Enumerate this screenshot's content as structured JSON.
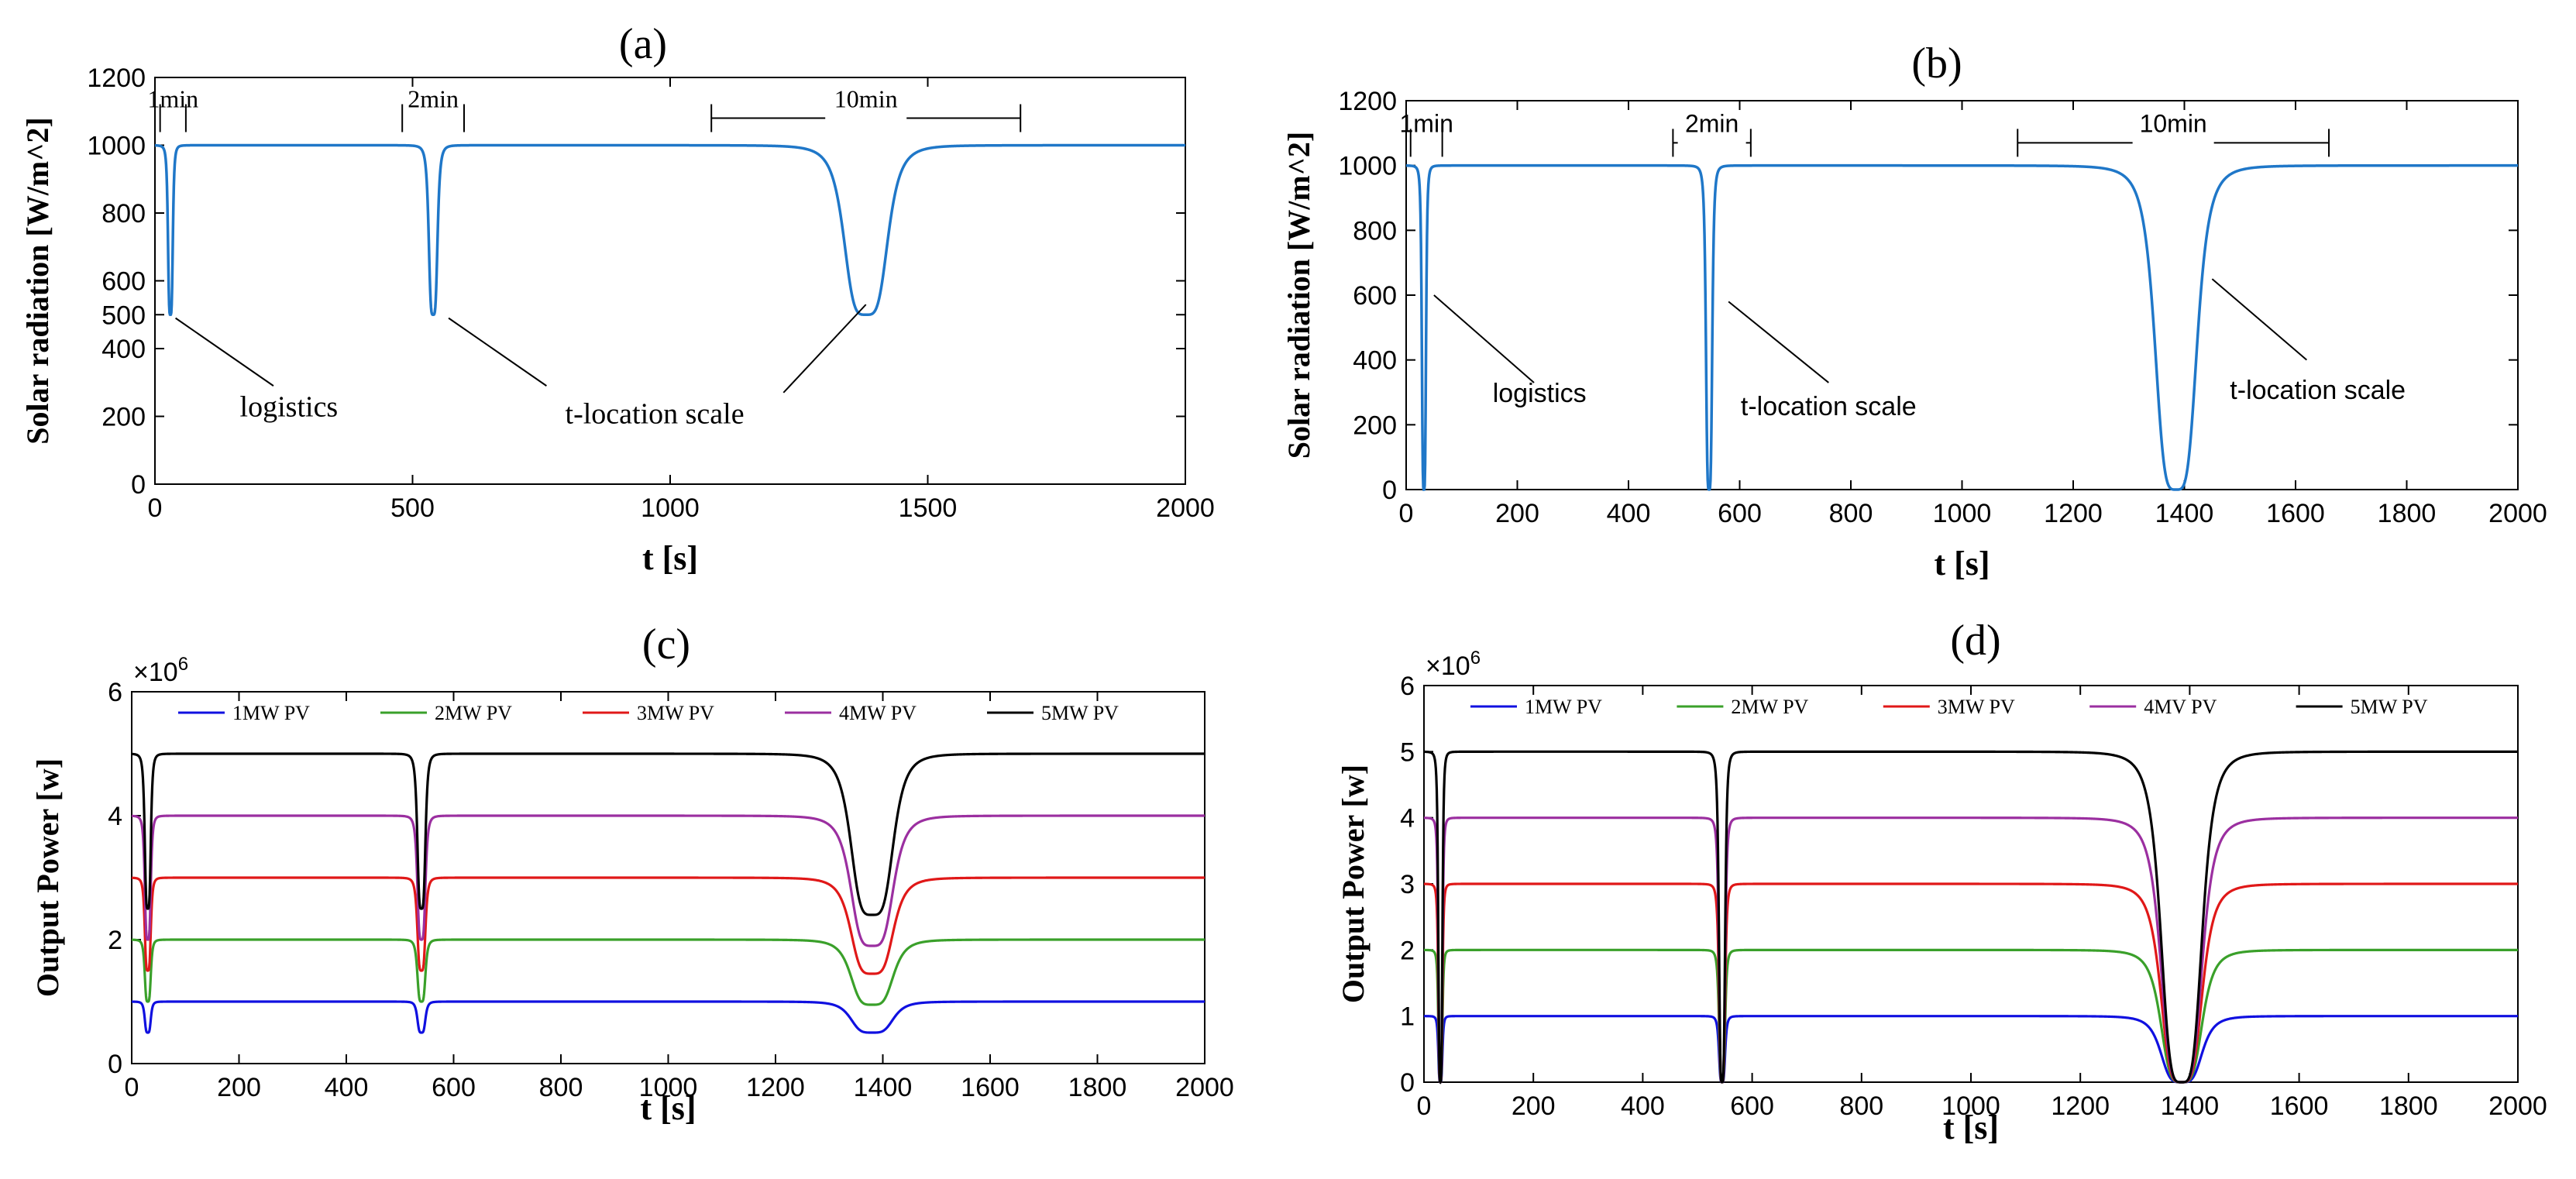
{
  "chart_data": [
    {
      "type": "line",
      "panel_label": "(a)",
      "xlabel": "t [s]",
      "ylabel": "Solar radiation [W/m^2]",
      "xlim": [
        0,
        2000
      ],
      "ylim": [
        0,
        1200
      ],
      "xticks": [
        "0",
        "500",
        "1000",
        "1500",
        "2000"
      ],
      "yticks": [
        "0",
        "200",
        "400",
        "500",
        "600",
        "800",
        "1000",
        "1200"
      ],
      "grid": false,
      "baseline": 1000,
      "dips": [
        {
          "center": 30,
          "width": 5,
          "min": 500
        },
        {
          "center": 540,
          "width": 9,
          "min": 500
        },
        {
          "center": 1380,
          "width": 45,
          "min": 500
        }
      ],
      "color": "#1f77c8",
      "annotations": [
        {
          "text": "1min",
          "x1": 10,
          "x2": 60,
          "y": 1080
        },
        {
          "text": "2min",
          "x1": 480,
          "x2": 600,
          "y": 1080
        },
        {
          "text": "10min",
          "x1": 1080,
          "x2": 1680,
          "y": 1080
        }
      ],
      "callouts": [
        {
          "text": "logistics",
          "from": [
            40,
            490
          ],
          "to": [
            230,
            290
          ],
          "label_at": [
            260,
            200
          ]
        },
        {
          "text": "t-location scale",
          "from": [
            570,
            490
          ],
          "to": [
            760,
            290
          ],
          "label_at": [
            970,
            180
          ]
        },
        {
          "text": "",
          "from": [
            1380,
            530
          ],
          "to": [
            1220,
            270
          ],
          "label_at": null
        }
      ]
    },
    {
      "type": "line",
      "panel_label": "(b)",
      "xlabel": "t [s]",
      "ylabel": "Solar radiation [W/m^2]",
      "xlim": [
        0,
        2000
      ],
      "ylim": [
        0,
        1200
      ],
      "xticks": [
        "0",
        "200",
        "400",
        "600",
        "800",
        "1000",
        "1200",
        "1400",
        "1600",
        "1800",
        "2000"
      ],
      "yticks": [
        "0",
        "200",
        "400",
        "600",
        "800",
        "1000",
        "1200"
      ],
      "grid": false,
      "baseline": 1000,
      "dips": [
        {
          "center": 32,
          "width": 4,
          "min": 0
        },
        {
          "center": 545,
          "width": 6,
          "min": 0
        },
        {
          "center": 1385,
          "width": 40,
          "min": 0
        }
      ],
      "color": "#1f77c8",
      "annotations": [
        {
          "text": "1min",
          "x1": 8,
          "x2": 65,
          "y": 1070
        },
        {
          "text": "2min",
          "x1": 480,
          "x2": 620,
          "y": 1070
        },
        {
          "text": "10min",
          "x1": 1100,
          "x2": 1660,
          "y": 1070
        }
      ],
      "callouts": [
        {
          "text": "logistics",
          "from": [
            50,
            600
          ],
          "to": [
            230,
            330
          ],
          "label_at": [
            240,
            270
          ]
        },
        {
          "text": "t-location scale",
          "from": [
            580,
            580
          ],
          "to": [
            760,
            330
          ],
          "label_at": [
            760,
            230
          ]
        },
        {
          "text": "t-location scale",
          "from": [
            1450,
            650
          ],
          "to": [
            1620,
            400
          ],
          "label_at": [
            1640,
            280
          ]
        }
      ]
    },
    {
      "type": "line",
      "panel_label": "(c)",
      "xlabel": "t [s]",
      "ylabel": "Output Power [w]",
      "scale_note": "×10^6",
      "xlim": [
        0,
        2000
      ],
      "ylim": [
        0,
        6
      ],
      "xticks": [
        "0",
        "200",
        "400",
        "600",
        "800",
        "1000",
        "1200",
        "1400",
        "1600",
        "1800",
        "2000"
      ],
      "yticks": [
        "0",
        "2",
        "4",
        "6"
      ],
      "grid": false,
      "legend": "top, horizontal",
      "dip_shape": [
        {
          "center": 30,
          "width": 6
        },
        {
          "center": 540,
          "width": 8
        },
        {
          "center": 1380,
          "width": 42
        }
      ],
      "series": [
        {
          "name": "1MW PV",
          "color": "#1010e0",
          "base": 1,
          "dip_mins": [
            0.5,
            0.5,
            0.5
          ]
        },
        {
          "name": "2MW PV",
          "color": "#3aa02a",
          "base": 2,
          "dip_mins": [
            1.0,
            1.0,
            0.95
          ]
        },
        {
          "name": "3MW PV",
          "color": "#e01818",
          "base": 3,
          "dip_mins": [
            1.5,
            1.5,
            1.45
          ]
        },
        {
          "name": "4MW PV",
          "color": "#9b2fa0",
          "base": 4,
          "dip_mins": [
            2.0,
            2.0,
            1.9
          ]
        },
        {
          "name": "5MW PV",
          "color": "#000000",
          "base": 5,
          "dip_mins": [
            2.5,
            2.5,
            2.4
          ]
        }
      ]
    },
    {
      "type": "line",
      "panel_label": "(d)",
      "xlabel": "t [s]",
      "ylabel": "Output Power [w]",
      "scale_note": "×10^6",
      "xlim": [
        0,
        2000
      ],
      "ylim": [
        0,
        6
      ],
      "xticks": [
        "0",
        "200",
        "400",
        "600",
        "800",
        "1000",
        "1200",
        "1400",
        "1600",
        "1800",
        "2000"
      ],
      "yticks": [
        "0",
        "1",
        "2",
        "3",
        "4",
        "5",
        "6"
      ],
      "grid": false,
      "legend": "top, horizontal",
      "dip_shape": [
        {
          "center": 30,
          "width": 4
        },
        {
          "center": 545,
          "width": 6
        },
        {
          "center": 1385,
          "width": 40
        }
      ],
      "series": [
        {
          "name": "1MW PV",
          "color": "#1010e0",
          "base": 1,
          "dip_mins": [
            0,
            0,
            0
          ]
        },
        {
          "name": "2MW PV",
          "color": "#3aa02a",
          "base": 2,
          "dip_mins": [
            0,
            0,
            0
          ]
        },
        {
          "name": "3MW PV",
          "color": "#e01818",
          "base": 3,
          "dip_mins": [
            0,
            0,
            0
          ]
        },
        {
          "name": "4MV PV",
          "color": "#9b2fa0",
          "base": 4,
          "dip_mins": [
            0,
            0,
            0
          ]
        },
        {
          "name": "5MW PV",
          "color": "#000000",
          "base": 5,
          "dip_mins": [
            0,
            0,
            0
          ]
        }
      ]
    }
  ]
}
